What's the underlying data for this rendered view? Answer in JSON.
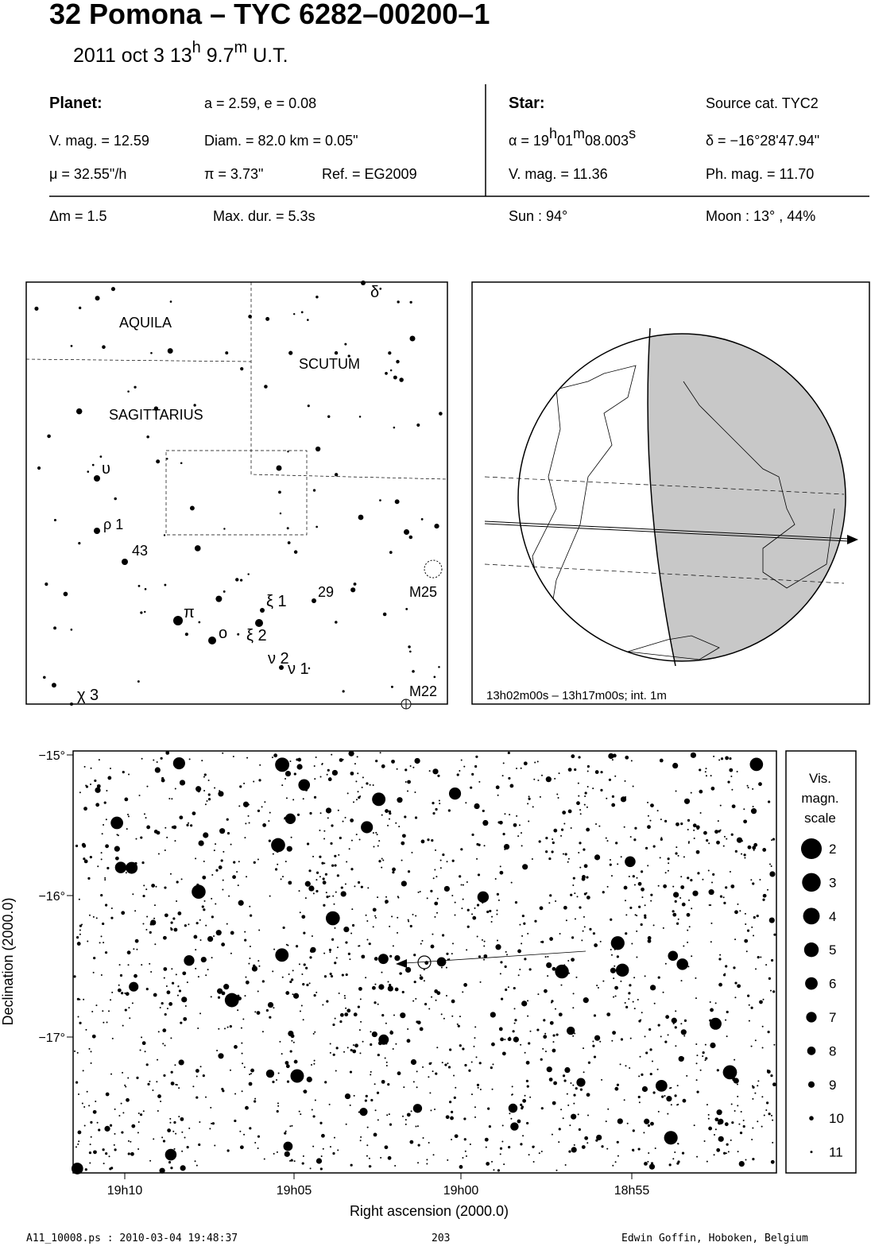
{
  "header": {
    "title": "32 Pomona  –  TYC 6282–00200–1",
    "subtitle": [
      "2011 oct  3  13",
      "h",
      " 9.7",
      "m",
      " U.T."
    ]
  },
  "info": {
    "planet": {
      "label": "Planet:",
      "orbit": "a = 2.59, e = 0.08",
      "vmag": "V. mag. = 12.59",
      "diam": "Diam. = 82.0 km = 0.05\"",
      "mu": "μ =  32.55\"/h",
      "pi": "π =  3.73\"",
      "ref": "Ref. = EG2009"
    },
    "star": {
      "label": "Star:",
      "source": "Source cat.  TYC2",
      "alpha": [
        "α = 19",
        "h",
        "01",
        "m",
        "08.003",
        "s"
      ],
      "delta": "δ = −16°28'47.94\"",
      "vmag": "V. mag. = 11.36",
      "phmag": "Ph. mag. = 11.70"
    },
    "event": {
      "dm": "Δm = 1.5",
      "maxdur": "Max. dur. = 5.3s",
      "sun": "Sun :  94°",
      "moon": "Moon :  13° , 44%"
    }
  },
  "finder": {
    "labels": [
      "AQUILA",
      "SCUTUM",
      "SAGITTARIUS",
      "δ",
      "υ",
      "ρ 1",
      "43",
      "π",
      "ο",
      "ξ 1",
      "ξ 2",
      "29",
      "M25",
      "ν 2",
      "ν 1",
      "χ 3",
      "M22"
    ]
  },
  "globe": {
    "caption": "13h02m00s – 13h17m00s; int.  1m"
  },
  "star_chart": {
    "yticks": [
      "−15°",
      "−16°",
      "−17°"
    ],
    "xticks": [
      "19h10",
      "19h05",
      "19h00",
      "18h55"
    ],
    "xlabel": "Right ascension (2000.0)",
    "ylabel": "Declination (2000.0)",
    "legend": {
      "title": [
        "Vis.",
        "magn.",
        "scale"
      ],
      "mags": [
        2,
        3,
        4,
        5,
        6,
        7,
        8,
        9,
        10,
        11
      ]
    }
  },
  "footer": {
    "file": "A11_10008.ps : 2010-03-04 19:48:37",
    "page": "203",
    "author": "Edwin Goffin, Hoboken, Belgium"
  }
}
